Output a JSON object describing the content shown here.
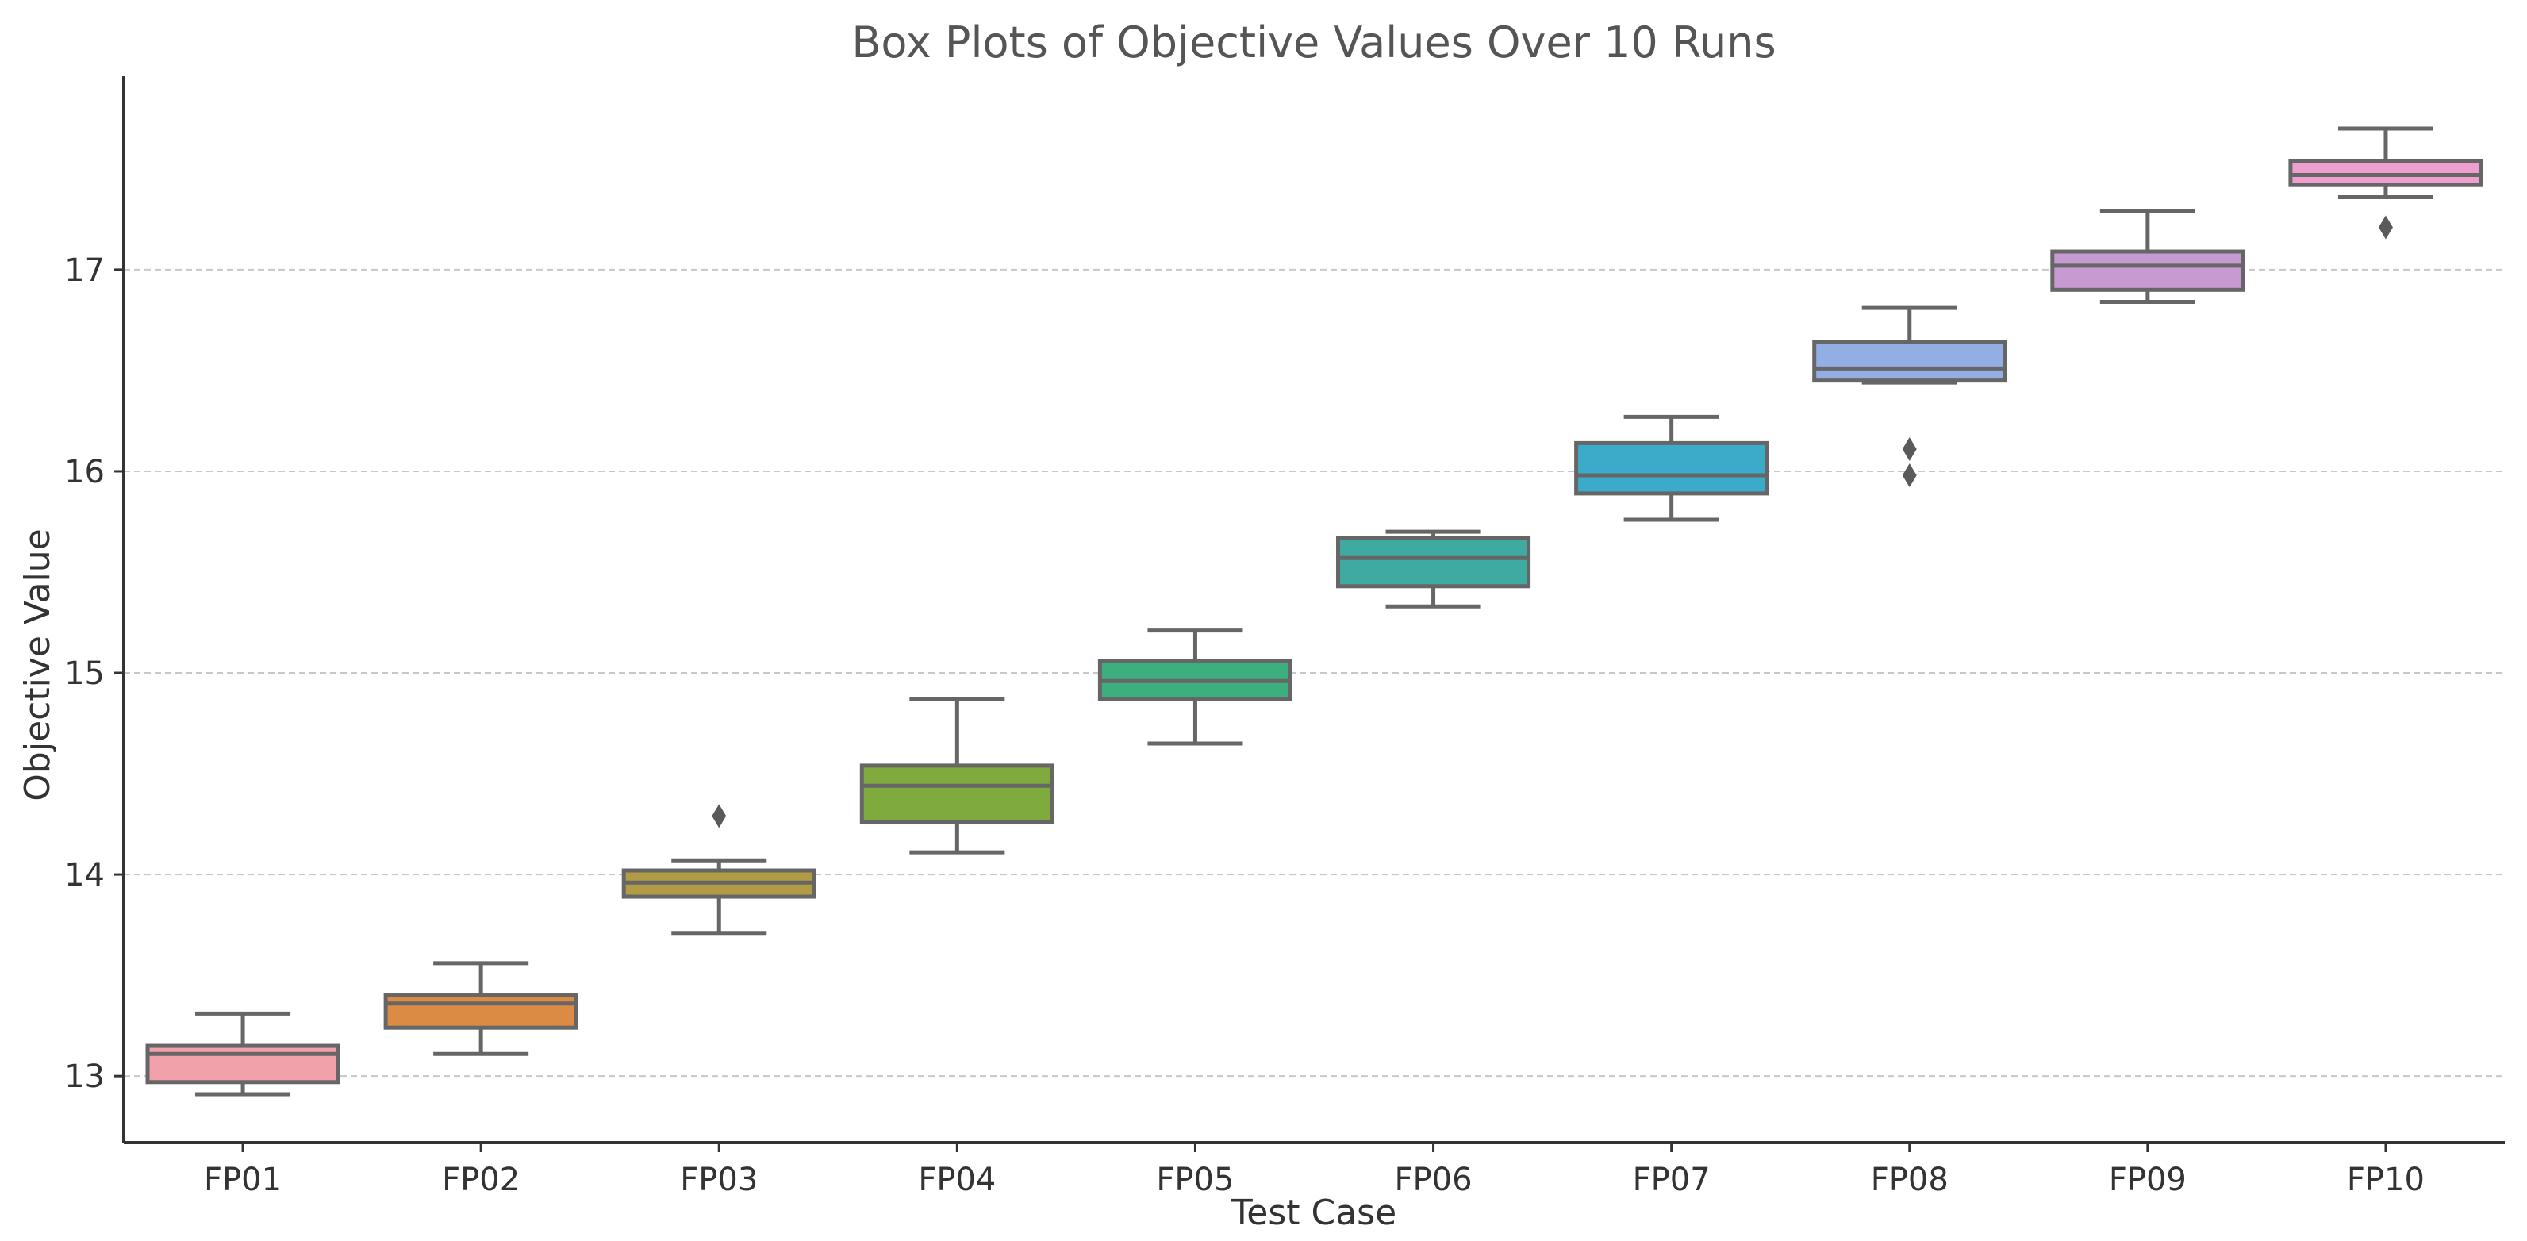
{
  "chart_data": {
    "type": "box",
    "title": "Box Plots of Objective Values Over 10 Runs",
    "xlabel": "Test Case",
    "ylabel": "Objective Value",
    "ylim": [
      12.67,
      17.96
    ],
    "yticks": [
      13,
      14,
      15,
      16,
      17
    ],
    "grid": "y-dashed",
    "categories": [
      "FP01",
      "FP02",
      "FP03",
      "FP04",
      "FP05",
      "FP06",
      "FP07",
      "FP08",
      "FP09",
      "FP10"
    ],
    "series": [
      {
        "name": "FP01",
        "color": "#f0a1aa",
        "whislo": 12.91,
        "q1": 12.97,
        "med": 13.11,
        "q3": 13.15,
        "whishi": 13.31,
        "outliers": []
      },
      {
        "name": "FP02",
        "color": "#db8b43",
        "whislo": 13.11,
        "q1": 13.24,
        "med": 13.36,
        "q3": 13.4,
        "whishi": 13.56,
        "outliers": []
      },
      {
        "name": "FP03",
        "color": "#b19b45",
        "whislo": 13.71,
        "q1": 13.89,
        "med": 13.96,
        "q3": 14.02,
        "whishi": 14.07,
        "outliers": [
          14.29
        ]
      },
      {
        "name": "FP04",
        "color": "#7faa3e",
        "whislo": 14.11,
        "q1": 14.26,
        "med": 14.44,
        "q3": 14.54,
        "whishi": 14.87,
        "outliers": []
      },
      {
        "name": "FP05",
        "color": "#3daf7e",
        "whislo": 14.65,
        "q1": 14.87,
        "med": 14.96,
        "q3": 15.06,
        "whishi": 15.21,
        "outliers": []
      },
      {
        "name": "FP06",
        "color": "#3faaa0",
        "whislo": 15.33,
        "q1": 15.43,
        "med": 15.57,
        "q3": 15.67,
        "whishi": 15.7,
        "outliers": []
      },
      {
        "name": "FP07",
        "color": "#3aabc9",
        "whislo": 15.76,
        "q1": 15.89,
        "med": 15.98,
        "q3": 16.14,
        "whishi": 16.27,
        "outliers": []
      },
      {
        "name": "FP08",
        "color": "#93aee3",
        "whislo": 16.44,
        "q1": 16.45,
        "med": 16.51,
        "q3": 16.64,
        "whishi": 16.81,
        "outliers": [
          16.11,
          15.98
        ]
      },
      {
        "name": "FP09",
        "color": "#c89ad4",
        "whislo": 16.84,
        "q1": 16.9,
        "med": 17.02,
        "q3": 17.09,
        "whishi": 17.29,
        "outliers": []
      },
      {
        "name": "FP10",
        "color": "#ef9fcf",
        "whislo": 17.36,
        "q1": 17.42,
        "med": 17.47,
        "q3": 17.54,
        "whishi": 17.7,
        "outliers": [
          17.21
        ]
      }
    ]
  }
}
